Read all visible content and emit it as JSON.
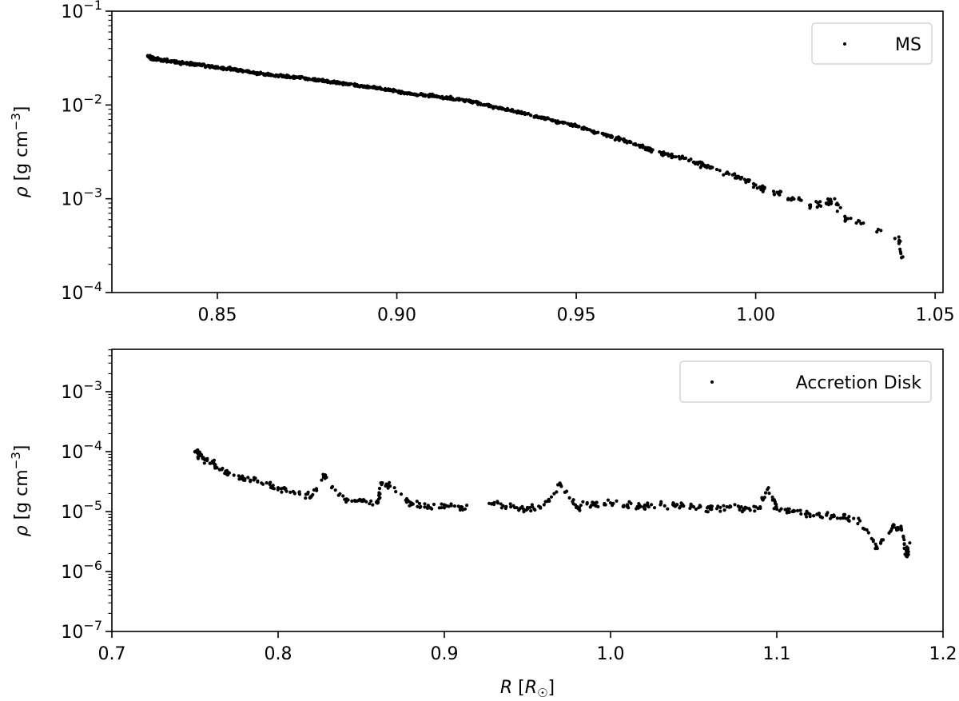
{
  "chart_data": [
    {
      "type": "scatter",
      "title": "",
      "xlabel": "",
      "ylabel": "ρ [g cm⁻³]",
      "yscale": "log",
      "xlim": [
        0.8206,
        1.0522
      ],
      "ylim": [
        0.0001,
        0.1
      ],
      "xticks": [
        "0.85",
        "0.90",
        "0.95",
        "1.00",
        "1.05"
      ],
      "xtick_values": [
        0.85,
        0.9,
        0.95,
        1.0,
        1.05
      ],
      "yticks": [
        "10^-4",
        "10^-3",
        "10^-2",
        "10^-1"
      ],
      "ytick_exponents": [
        -4,
        -3,
        -2,
        -1
      ],
      "grid": false,
      "legend": {
        "position": "upper right",
        "entries": [
          "MS"
        ]
      },
      "series": [
        {
          "name": "MS",
          "points": [
            [
              0.831,
              0.033
            ],
            [
              0.832,
              0.031
            ],
            [
              0.835,
              0.03
            ],
            [
              0.84,
              0.028
            ],
            [
              0.845,
              0.027
            ],
            [
              0.85,
              0.025
            ],
            [
              0.855,
              0.024
            ],
            [
              0.86,
              0.022
            ],
            [
              0.865,
              0.021
            ],
            [
              0.87,
              0.02
            ],
            [
              0.875,
              0.019
            ],
            [
              0.88,
              0.018
            ],
            [
              0.885,
              0.017
            ],
            [
              0.89,
              0.016
            ],
            [
              0.895,
              0.015
            ],
            [
              0.9,
              0.014
            ],
            [
              0.905,
              0.013
            ],
            [
              0.91,
              0.0125
            ],
            [
              0.915,
              0.0118
            ],
            [
              0.92,
              0.011
            ],
            [
              0.925,
              0.01
            ],
            [
              0.93,
              0.009
            ],
            [
              0.935,
              0.0082
            ],
            [
              0.94,
              0.0074
            ],
            [
              0.945,
              0.0066
            ],
            [
              0.95,
              0.006
            ],
            [
              0.955,
              0.0052
            ],
            [
              0.96,
              0.0046
            ],
            [
              0.965,
              0.004
            ],
            [
              0.97,
              0.0034
            ],
            [
              0.975,
              0.003
            ],
            [
              0.98,
              0.0027
            ],
            [
              0.985,
              0.0023
            ],
            [
              0.99,
              0.002
            ],
            [
              0.995,
              0.0017
            ],
            [
              1.0,
              0.0014
            ],
            [
              1.005,
              0.0012
            ],
            [
              1.01,
              0.001
            ],
            [
              1.015,
              0.00085
            ],
            [
              1.02,
              0.0009
            ],
            [
              1.022,
              0.001
            ],
            [
              1.025,
              0.0006
            ],
            [
              1.03,
              0.00055
            ],
            [
              1.04,
              0.00036
            ],
            [
              1.041,
              0.00024
            ]
          ]
        }
      ]
    },
    {
      "type": "scatter",
      "title": "",
      "xlabel": "R [R☉]",
      "ylabel": "ρ [g cm⁻³]",
      "yscale": "log",
      "xlim": [
        0.7,
        1.2
      ],
      "ylim": [
        1e-07,
        0.0051
      ],
      "xticks": [
        "0.7",
        "0.8",
        "0.9",
        "1.0",
        "1.1",
        "1.2"
      ],
      "xtick_values": [
        0.7,
        0.8,
        0.9,
        1.0,
        1.1,
        1.2
      ],
      "yticks": [
        "10^-7",
        "10^-6",
        "10^-5",
        "10^-4",
        "10^-3"
      ],
      "ytick_exponents": [
        -7,
        -6,
        -5,
        -4,
        -3
      ],
      "grid": false,
      "legend": {
        "position": "upper right",
        "entries": [
          "Accretion Disk"
        ]
      },
      "series": [
        {
          "name": "Accretion Disk",
          "points": [
            [
              0.75,
              0.0001
            ],
            [
              0.752,
              9.5e-05
            ],
            [
              0.755,
              8e-05
            ],
            [
              0.76,
              6.5e-05
            ],
            [
              0.765,
              5e-05
            ],
            [
              0.77,
              4.5e-05
            ],
            [
              0.78,
              3.5e-05
            ],
            [
              0.79,
              3e-05
            ],
            [
              0.8,
              2.5e-05
            ],
            [
              0.81,
              2e-05
            ],
            [
              0.82,
              1.8e-05
            ],
            [
              0.828,
              4e-05
            ],
            [
              0.84,
              1.6e-05
            ],
            [
              0.85,
              1.5e-05
            ],
            [
              0.86,
              1.4e-05
            ],
            [
              0.862,
              3e-05
            ],
            [
              0.87,
              2.5e-05
            ],
            [
              0.88,
              1.3e-05
            ],
            [
              0.89,
              1.2e-05
            ],
            [
              0.9,
              1.3e-05
            ],
            [
              0.91,
              1.2e-05
            ],
            [
              0.93,
              1.4e-05
            ],
            [
              0.94,
              1.2e-05
            ],
            [
              0.95,
              1.1e-05
            ],
            [
              0.96,
              1.3e-05
            ],
            [
              0.97,
              2.8e-05
            ],
            [
              0.98,
              1.2e-05
            ],
            [
              0.99,
              1.3e-05
            ],
            [
              1.0,
              1.4e-05
            ],
            [
              1.01,
              1.3e-05
            ],
            [
              1.02,
              1.2e-05
            ],
            [
              1.03,
              1.3e-05
            ],
            [
              1.04,
              1.3e-05
            ],
            [
              1.05,
              1.2e-05
            ],
            [
              1.06,
              1.1e-05
            ],
            [
              1.07,
              1.2e-05
            ],
            [
              1.08,
              1.1e-05
            ],
            [
              1.09,
              1.2e-05
            ],
            [
              1.095,
              2.5e-05
            ],
            [
              1.1,
              1.1e-05
            ],
            [
              1.11,
              1e-05
            ],
            [
              1.12,
              9e-06
            ],
            [
              1.13,
              9e-06
            ],
            [
              1.14,
              8e-06
            ],
            [
              1.15,
              7e-06
            ],
            [
              1.16,
              2.6e-06
            ],
            [
              1.17,
              5.5e-06
            ],
            [
              1.175,
              5e-06
            ],
            [
              1.178,
              1.8e-06
            ],
            [
              1.18,
              3e-06
            ]
          ]
        }
      ]
    }
  ],
  "panels": {
    "top": {
      "ylabel": "ρ [g cm⁻³]",
      "legend_label": "MS",
      "xtick_labels": [
        "0.85",
        "0.90",
        "0.95",
        "1.00",
        "1.05"
      ]
    },
    "bottom": {
      "ylabel": "ρ [g cm⁻³]",
      "xlabel": "R [R☉]",
      "legend_label": "Accretion Disk",
      "xtick_labels": [
        "0.7",
        "0.8",
        "0.9",
        "1.0",
        "1.1",
        "1.2"
      ]
    }
  }
}
